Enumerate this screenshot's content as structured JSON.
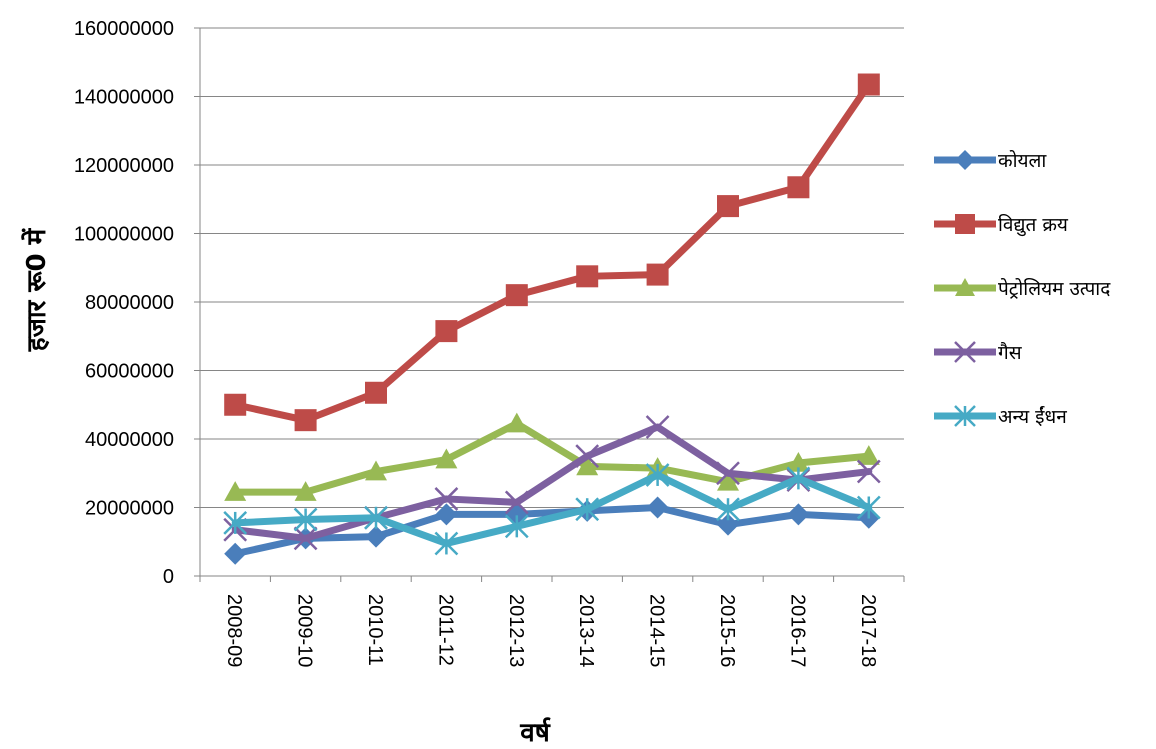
{
  "chart_data": {
    "type": "line",
    "title": "",
    "xlabel": "वर्ष",
    "ylabel": "हजार रू0 में",
    "ylim": [
      0,
      160000000
    ],
    "yticks": [
      0,
      20000000,
      40000000,
      60000000,
      80000000,
      100000000,
      120000000,
      140000000,
      160000000
    ],
    "grid": true,
    "legend": "right",
    "categories": [
      "2008-09",
      "2009-10",
      "2010-11",
      "2011-12",
      "2012-13",
      "2013-14",
      "2014-15",
      "2015-16",
      "2016-17",
      "2017-18"
    ],
    "series": [
      {
        "name": "कोयला",
        "color": "#4a7ebb",
        "marker": "diamond",
        "values": [
          6500000,
          11000000,
          11500000,
          18000000,
          18000000,
          19000000,
          20000000,
          15000000,
          18000000,
          17000000
        ]
      },
      {
        "name": "विद्युत क्रय",
        "color": "#be4b48",
        "marker": "square",
        "values": [
          50000000,
          45500000,
          53500000,
          71500000,
          82000000,
          87500000,
          88000000,
          108000000,
          113500000,
          143500000
        ]
      },
      {
        "name": "पेट्रोलियम उत्पाद",
        "color": "#98b954",
        "marker": "triangle",
        "values": [
          24500000,
          24500000,
          30500000,
          34000000,
          44500000,
          32000000,
          31500000,
          27500000,
          33000000,
          35000000
        ]
      },
      {
        "name": "गैस",
        "color": "#7d60a0",
        "marker": "x",
        "values": [
          13500000,
          11000000,
          17000000,
          22500000,
          21500000,
          35000000,
          43500000,
          30000000,
          28000000,
          30500000
        ]
      },
      {
        "name": "अन्य ईंधन",
        "color": "#46aac5",
        "marker": "star",
        "values": [
          15500000,
          16500000,
          17000000,
          9500000,
          14500000,
          19500000,
          29500000,
          19500000,
          28500000,
          20000000
        ]
      }
    ]
  }
}
